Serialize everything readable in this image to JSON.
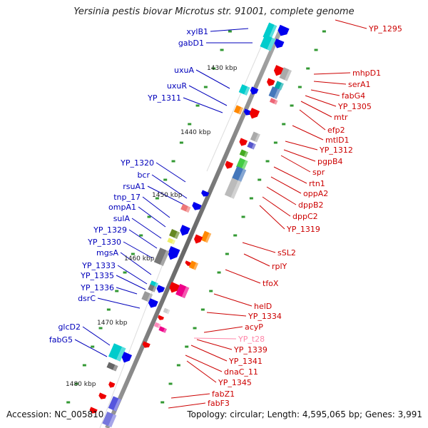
{
  "title": "Yersinia pestis biovar Microtus str. 91001, complete genome",
  "footer": {
    "accession_label": "Accession:",
    "accession": "NC_005810",
    "topology_label": "Topology:",
    "topology": "circular",
    "length_label": "Length:",
    "length": "4,595,065 bp",
    "genes_label": "Genes:",
    "genes": "3,991"
  },
  "colors": {
    "left_labels": "#0000bb",
    "right_labels": "#cc0000",
    "trna_label": "#ff88aa",
    "backbone": "#777777",
    "ticks": "#339933"
  },
  "tick_labels": [
    "1430 kbp",
    "1440 kbp",
    "1450 kbp",
    "1460 kbp",
    "1470 kbp",
    "1480 kbp"
  ],
  "left_genes": [
    "xylB1",
    "gabD1",
    "uxuA",
    "uxuR",
    "YP_1311",
    "YP_1320",
    "bcr",
    "rsuA1",
    "tnp_17",
    "ompA1",
    "sulA",
    "YP_1329",
    "YP_1330",
    "mgsA",
    "YP_1333",
    "YP_1335",
    "YP_1336",
    "dsrC",
    "glcD2",
    "fabG5"
  ],
  "right_genes": [
    "YP_1295",
    "mhpD1",
    "serA1",
    "fabG4",
    "YP_1305",
    "mtr",
    "efp2",
    "mtlD1",
    "YP_1312",
    "pgpB4",
    "spr",
    "rtn1",
    "oppA2",
    "dppB2",
    "dppC2",
    "YP_1319",
    "sSL2",
    "rplY",
    "tfoX",
    "helD",
    "YP_1334",
    "acyP",
    "YP_t28",
    "YP_1339",
    "YP_1341",
    "dnaC_11",
    "YP_1345",
    "fabZ1",
    "fabF3"
  ]
}
